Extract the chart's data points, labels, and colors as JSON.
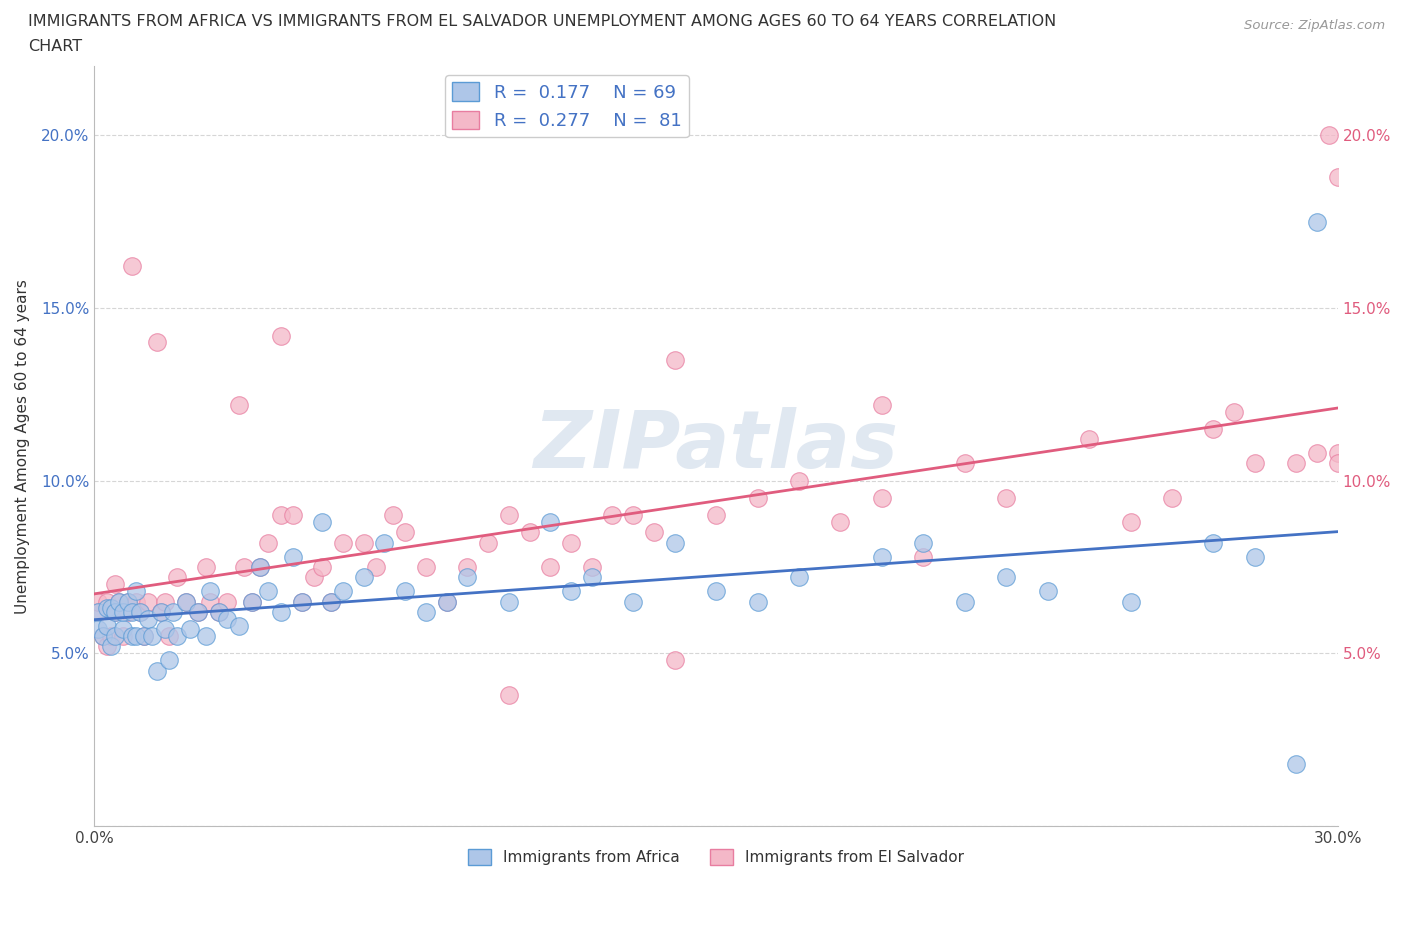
{
  "title_line1": "IMMIGRANTS FROM AFRICA VS IMMIGRANTS FROM EL SALVADOR UNEMPLOYMENT AMONG AGES 60 TO 64 YEARS CORRELATION",
  "title_line2": "CHART",
  "source_text": "Source: ZipAtlas.com",
  "ylabel": "Unemployment Among Ages 60 to 64 years",
  "xlim": [
    0.0,
    0.3
  ],
  "ylim": [
    0.0,
    0.22
  ],
  "xticks": [
    0.0,
    0.05,
    0.1,
    0.15,
    0.2,
    0.25,
    0.3
  ],
  "xticklabels": [
    "0.0%",
    "",
    "",
    "",
    "",
    "",
    "30.0%"
  ],
  "yticks": [
    0.0,
    0.05,
    0.1,
    0.15,
    0.2
  ],
  "yticklabels_left": [
    "",
    "5.0%",
    "10.0%",
    "15.0%",
    "20.0%"
  ],
  "yticklabels_right": [
    "",
    "5.0%",
    "10.0%",
    "15.0%",
    "20.0%"
  ],
  "africa_color": "#aec6e8",
  "africa_edge_color": "#5b9bd5",
  "salvador_color": "#f4b8c8",
  "salvador_edge_color": "#e87da0",
  "trend_africa_color": "#4472c4",
  "trend_salvador_color": "#e05c7e",
  "R_africa": 0.177,
  "N_africa": 69,
  "R_salvador": 0.277,
  "N_salvador": 81,
  "watermark_text": "ZIPatlas",
  "africa_label": "Immigrants from Africa",
  "salvador_label": "Immigrants from El Salvador",
  "africa_x": [
    0.001,
    0.001,
    0.002,
    0.003,
    0.003,
    0.004,
    0.004,
    0.005,
    0.005,
    0.006,
    0.007,
    0.007,
    0.008,
    0.009,
    0.009,
    0.01,
    0.01,
    0.011,
    0.012,
    0.013,
    0.014,
    0.015,
    0.016,
    0.017,
    0.018,
    0.019,
    0.02,
    0.022,
    0.023,
    0.025,
    0.027,
    0.028,
    0.03,
    0.032,
    0.035,
    0.038,
    0.04,
    0.042,
    0.045,
    0.048,
    0.05,
    0.055,
    0.057,
    0.06,
    0.065,
    0.07,
    0.075,
    0.08,
    0.085,
    0.09,
    0.1,
    0.11,
    0.115,
    0.12,
    0.13,
    0.14,
    0.15,
    0.16,
    0.17,
    0.19,
    0.2,
    0.21,
    0.22,
    0.23,
    0.25,
    0.27,
    0.28,
    0.29,
    0.295
  ],
  "africa_y": [
    0.062,
    0.057,
    0.055,
    0.058,
    0.063,
    0.052,
    0.063,
    0.055,
    0.062,
    0.065,
    0.057,
    0.062,
    0.065,
    0.055,
    0.062,
    0.055,
    0.068,
    0.062,
    0.055,
    0.06,
    0.055,
    0.045,
    0.062,
    0.057,
    0.048,
    0.062,
    0.055,
    0.065,
    0.057,
    0.062,
    0.055,
    0.068,
    0.062,
    0.06,
    0.058,
    0.065,
    0.075,
    0.068,
    0.062,
    0.078,
    0.065,
    0.088,
    0.065,
    0.068,
    0.072,
    0.082,
    0.068,
    0.062,
    0.065,
    0.072,
    0.065,
    0.088,
    0.068,
    0.072,
    0.065,
    0.082,
    0.068,
    0.065,
    0.072,
    0.078,
    0.082,
    0.065,
    0.072,
    0.068,
    0.065,
    0.082,
    0.078,
    0.018,
    0.175
  ],
  "salvador_x": [
    0.001,
    0.001,
    0.002,
    0.003,
    0.003,
    0.004,
    0.005,
    0.005,
    0.006,
    0.007,
    0.008,
    0.008,
    0.009,
    0.01,
    0.011,
    0.012,
    0.013,
    0.015,
    0.016,
    0.017,
    0.018,
    0.02,
    0.022,
    0.025,
    0.027,
    0.028,
    0.03,
    0.032,
    0.035,
    0.036,
    0.038,
    0.04,
    0.042,
    0.045,
    0.048,
    0.05,
    0.053,
    0.055,
    0.057,
    0.06,
    0.065,
    0.068,
    0.072,
    0.075,
    0.08,
    0.085,
    0.09,
    0.095,
    0.1,
    0.105,
    0.11,
    0.115,
    0.12,
    0.125,
    0.13,
    0.135,
    0.14,
    0.15,
    0.16,
    0.17,
    0.18,
    0.19,
    0.2,
    0.21,
    0.22,
    0.24,
    0.25,
    0.26,
    0.27,
    0.275,
    0.28,
    0.29,
    0.295,
    0.298,
    0.3,
    0.3,
    0.3,
    0.19,
    0.1,
    0.045,
    0.14
  ],
  "salvador_y": [
    0.062,
    0.065,
    0.055,
    0.052,
    0.065,
    0.055,
    0.062,
    0.07,
    0.065,
    0.055,
    0.062,
    0.065,
    0.162,
    0.065,
    0.062,
    0.055,
    0.065,
    0.14,
    0.062,
    0.065,
    0.055,
    0.072,
    0.065,
    0.062,
    0.075,
    0.065,
    0.062,
    0.065,
    0.122,
    0.075,
    0.065,
    0.075,
    0.082,
    0.09,
    0.09,
    0.065,
    0.072,
    0.075,
    0.065,
    0.082,
    0.082,
    0.075,
    0.09,
    0.085,
    0.075,
    0.065,
    0.075,
    0.082,
    0.09,
    0.085,
    0.075,
    0.082,
    0.075,
    0.09,
    0.09,
    0.085,
    0.135,
    0.09,
    0.095,
    0.1,
    0.088,
    0.095,
    0.078,
    0.105,
    0.095,
    0.112,
    0.088,
    0.095,
    0.115,
    0.12,
    0.105,
    0.105,
    0.108,
    0.2,
    0.108,
    0.188,
    0.105,
    0.122,
    0.038,
    0.142,
    0.048
  ]
}
